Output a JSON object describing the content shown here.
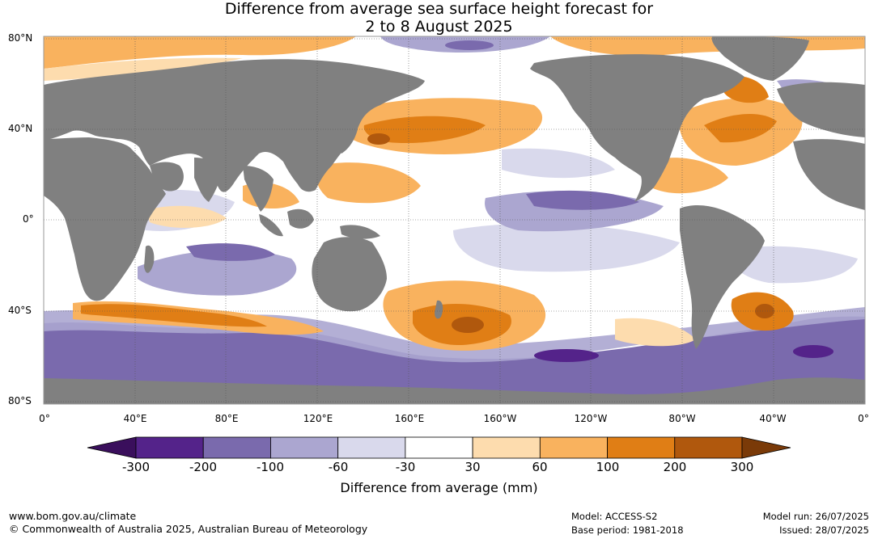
{
  "title": {
    "line1": "Difference from average sea surface height forecast for",
    "line2": "2 to 8 August 2025"
  },
  "lat_labels": [
    "80°N",
    "40°N",
    "0°",
    "40°S",
    "80°S"
  ],
  "lon_labels": [
    "0°",
    "40°E",
    "80°E",
    "120°E",
    "160°E",
    "160°W",
    "120°W",
    "80°W",
    "40°W",
    "0°"
  ],
  "colorbar": {
    "title": "Difference from average (mm)",
    "ticks": [
      "-300",
      "-200",
      "-100",
      "-60",
      "-30",
      "30",
      "60",
      "100",
      "200",
      "300"
    ],
    "colors": [
      "#3a0f5c",
      "#54238a",
      "#7a6aad",
      "#aba6d0",
      "#d9d9ec",
      "#ffffff",
      "#fddcae",
      "#f9b25e",
      "#e07e15",
      "#b0580d",
      "#7a3a08"
    ]
  },
  "footer": {
    "website": "www.bom.gov.au/climate",
    "copyright": "© Commonwealth of Australia 2025, Australian Bureau of Meteorology",
    "model": "Model: ACCESS-S2",
    "base_period": "Base period: 1981-2018",
    "model_run": "Model run: 26/07/2025",
    "issued": "Issued: 28/07/2025"
  },
  "land_color": "#808080"
}
